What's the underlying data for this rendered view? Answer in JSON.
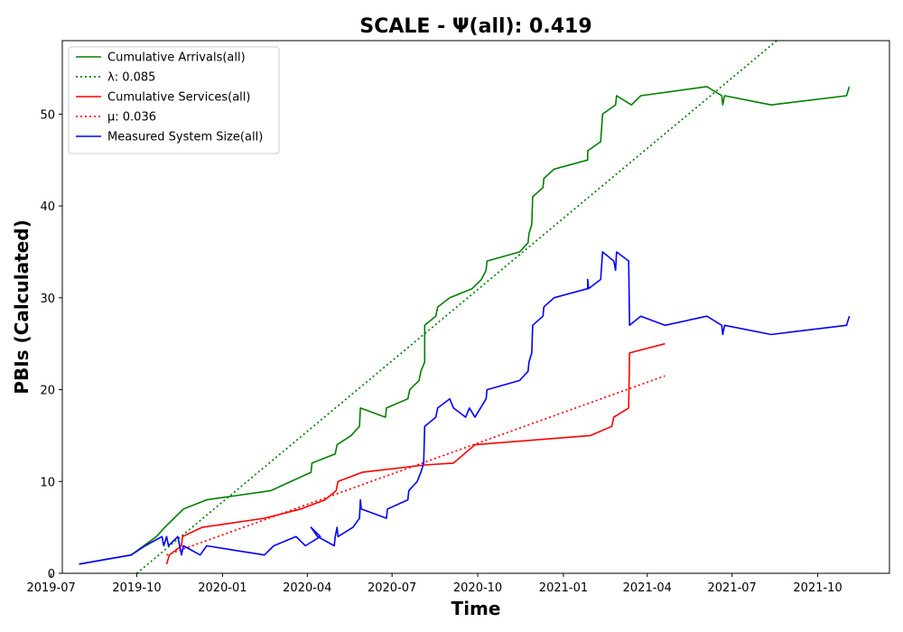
{
  "chart_data": {
    "type": "line",
    "title": "SCALE -  Ψ(all): 0.419",
    "xlabel": "Time",
    "ylabel": "PBIs (Calculated)",
    "xlim": [
      "2019-07-13",
      "2021-12-17"
    ],
    "ylim": [
      0,
      58
    ],
    "x_ticks": [
      "2019-07-01",
      "2019-10-01",
      "2020-01-01",
      "2020-04-01",
      "2020-07-01",
      "2020-10-01",
      "2021-01-01",
      "2021-04-01",
      "2021-07-01",
      "2021-10-01"
    ],
    "x_tick_labels": [
      "2019-07",
      "2019-10",
      "2020-01",
      "2020-04",
      "2020-07",
      "2020-10",
      "2021-01",
      "2021-04",
      "2021-07",
      "2021-10"
    ],
    "y_ticks": [
      0,
      10,
      20,
      30,
      40,
      50
    ],
    "legend_position": "upper-left",
    "grid": false,
    "series": [
      {
        "name": "Cumulative Arrivals(all)",
        "style": "solid",
        "color": "#008000",
        "points": [
          [
            "2019-07-31",
            1
          ],
          [
            "2019-09-25",
            2
          ],
          [
            "2019-10-22",
            4
          ],
          [
            "2019-10-31",
            5
          ],
          [
            "2019-11-10",
            6
          ],
          [
            "2019-11-20",
            7
          ],
          [
            "2019-12-15",
            8
          ],
          [
            "2020-02-22",
            9
          ],
          [
            "2020-04-05",
            11
          ],
          [
            "2020-04-06",
            12
          ],
          [
            "2020-05-01",
            13
          ],
          [
            "2020-05-03",
            14
          ],
          [
            "2020-05-18",
            15
          ],
          [
            "2020-05-27",
            16
          ],
          [
            "2020-05-28",
            18
          ],
          [
            "2020-06-24",
            17
          ],
          [
            "2020-06-25",
            18
          ],
          [
            "2020-07-18",
            19
          ],
          [
            "2020-07-20",
            20
          ],
          [
            "2020-07-30",
            21
          ],
          [
            "2020-08-01",
            22
          ],
          [
            "2020-08-05",
            23
          ],
          [
            "2020-08-05",
            27
          ],
          [
            "2020-08-17",
            28
          ],
          [
            "2020-08-19",
            29
          ],
          [
            "2020-09-01",
            30
          ],
          [
            "2020-09-25",
            31
          ],
          [
            "2020-10-05",
            32
          ],
          [
            "2020-10-10",
            33
          ],
          [
            "2020-10-11",
            34
          ],
          [
            "2020-11-15",
            35
          ],
          [
            "2020-11-24",
            36
          ],
          [
            "2020-11-25",
            37
          ],
          [
            "2020-11-28",
            38
          ],
          [
            "2020-11-29",
            41
          ],
          [
            "2020-12-10",
            42
          ],
          [
            "2020-12-11",
            43
          ],
          [
            "2020-12-22",
            44
          ],
          [
            "2021-01-27",
            45
          ],
          [
            "2021-01-27",
            46
          ],
          [
            "2021-02-10",
            47
          ],
          [
            "2021-02-12",
            50
          ],
          [
            "2021-02-26",
            51
          ],
          [
            "2021-02-27",
            52
          ],
          [
            "2021-03-15",
            51
          ],
          [
            "2021-03-25",
            52
          ],
          [
            "2021-06-04",
            53
          ],
          [
            "2021-06-20",
            52
          ],
          [
            "2021-06-21",
            51
          ],
          [
            "2021-06-23",
            52
          ],
          [
            "2021-08-12",
            51
          ],
          [
            "2021-11-01",
            52
          ],
          [
            "2021-11-04",
            53
          ]
        ]
      },
      {
        "name": "λ: 0.085",
        "style": "dotted",
        "color": "#008000",
        "points": [
          [
            "2019-10-01",
            0
          ],
          [
            "2021-08-18",
            58
          ]
        ]
      },
      {
        "name": "Cumulative Services(all)",
        "style": "solid",
        "color": "#ff0000",
        "points": [
          [
            "2019-11-02",
            1
          ],
          [
            "2019-11-05",
            2
          ],
          [
            "2019-11-18",
            3
          ],
          [
            "2019-11-19",
            4
          ],
          [
            "2019-12-10",
            5
          ],
          [
            "2020-02-15",
            6
          ],
          [
            "2020-03-25",
            7
          ],
          [
            "2020-04-20",
            8
          ],
          [
            "2020-05-02",
            9
          ],
          [
            "2020-05-04",
            10
          ],
          [
            "2020-05-30",
            11
          ],
          [
            "2020-08-05",
            11.8
          ],
          [
            "2020-09-05",
            12
          ],
          [
            "2020-09-28",
            14
          ],
          [
            "2021-01-30",
            15
          ],
          [
            "2021-02-22",
            16
          ],
          [
            "2021-02-24",
            17
          ],
          [
            "2021-03-12",
            18
          ],
          [
            "2021-03-13",
            24
          ],
          [
            "2021-04-20",
            25
          ]
        ]
      },
      {
        "name": "μ: 0.036",
        "style": "dotted",
        "color": "#ff0000",
        "points": [
          [
            "2019-11-02",
            2
          ],
          [
            "2021-04-20",
            21.5
          ]
        ]
      },
      {
        "name": "Measured System Size(all)",
        "style": "solid",
        "color": "#0000ff",
        "points": [
          [
            "2019-07-31",
            1
          ],
          [
            "2019-09-25",
            2
          ],
          [
            "2019-10-10",
            3
          ],
          [
            "2019-10-28",
            4
          ],
          [
            "2019-10-30",
            3
          ],
          [
            "2019-11-02",
            4
          ],
          [
            "2019-11-04",
            3
          ],
          [
            "2019-11-14",
            4
          ],
          [
            "2019-11-18",
            2
          ],
          [
            "2019-11-20",
            3
          ],
          [
            "2019-12-08",
            2
          ],
          [
            "2019-12-15",
            3
          ],
          [
            "2020-02-15",
            2
          ],
          [
            "2020-02-25",
            3
          ],
          [
            "2020-03-20",
            4
          ],
          [
            "2020-03-30",
            3
          ],
          [
            "2020-04-15",
            4
          ],
          [
            "2020-04-05",
            5
          ],
          [
            "2020-04-12",
            4
          ],
          [
            "2020-04-30",
            3
          ],
          [
            "2020-05-01",
            4
          ],
          [
            "2020-05-03",
            5
          ],
          [
            "2020-05-04",
            4
          ],
          [
            "2020-05-20",
            5
          ],
          [
            "2020-05-27",
            6
          ],
          [
            "2020-05-28",
            8
          ],
          [
            "2020-05-29",
            7
          ],
          [
            "2020-06-25",
            6
          ],
          [
            "2020-06-26",
            7
          ],
          [
            "2020-07-18",
            8
          ],
          [
            "2020-07-19",
            9
          ],
          [
            "2020-07-28",
            10
          ],
          [
            "2020-08-01",
            11
          ],
          [
            "2020-08-04",
            12
          ],
          [
            "2020-08-05",
            16
          ],
          [
            "2020-08-17",
            17
          ],
          [
            "2020-08-19",
            18
          ],
          [
            "2020-09-01",
            19
          ],
          [
            "2020-09-05",
            18
          ],
          [
            "2020-09-18",
            17
          ],
          [
            "2020-09-22",
            18
          ],
          [
            "2020-09-28",
            17
          ],
          [
            "2020-10-10",
            19
          ],
          [
            "2020-10-11",
            20
          ],
          [
            "2020-11-15",
            21
          ],
          [
            "2020-11-24",
            22
          ],
          [
            "2020-11-25",
            23
          ],
          [
            "2020-11-28",
            24
          ],
          [
            "2020-11-29",
            27
          ],
          [
            "2020-12-10",
            28
          ],
          [
            "2020-12-11",
            29
          ],
          [
            "2020-12-22",
            30
          ],
          [
            "2021-01-27",
            31
          ],
          [
            "2021-01-27",
            32
          ],
          [
            "2021-01-28",
            31
          ],
          [
            "2021-02-10",
            32
          ],
          [
            "2021-02-12",
            35
          ],
          [
            "2021-02-24",
            34
          ],
          [
            "2021-02-26",
            33
          ],
          [
            "2021-02-27",
            35
          ],
          [
            "2021-03-12",
            34
          ],
          [
            "2021-03-13",
            27
          ],
          [
            "2021-03-25",
            28
          ],
          [
            "2021-04-20",
            27
          ],
          [
            "2021-06-04",
            28
          ],
          [
            "2021-06-20",
            27
          ],
          [
            "2021-06-21",
            26
          ],
          [
            "2021-06-23",
            27
          ],
          [
            "2021-08-12",
            26
          ],
          [
            "2021-11-01",
            27
          ],
          [
            "2021-11-04",
            28
          ]
        ]
      }
    ]
  }
}
